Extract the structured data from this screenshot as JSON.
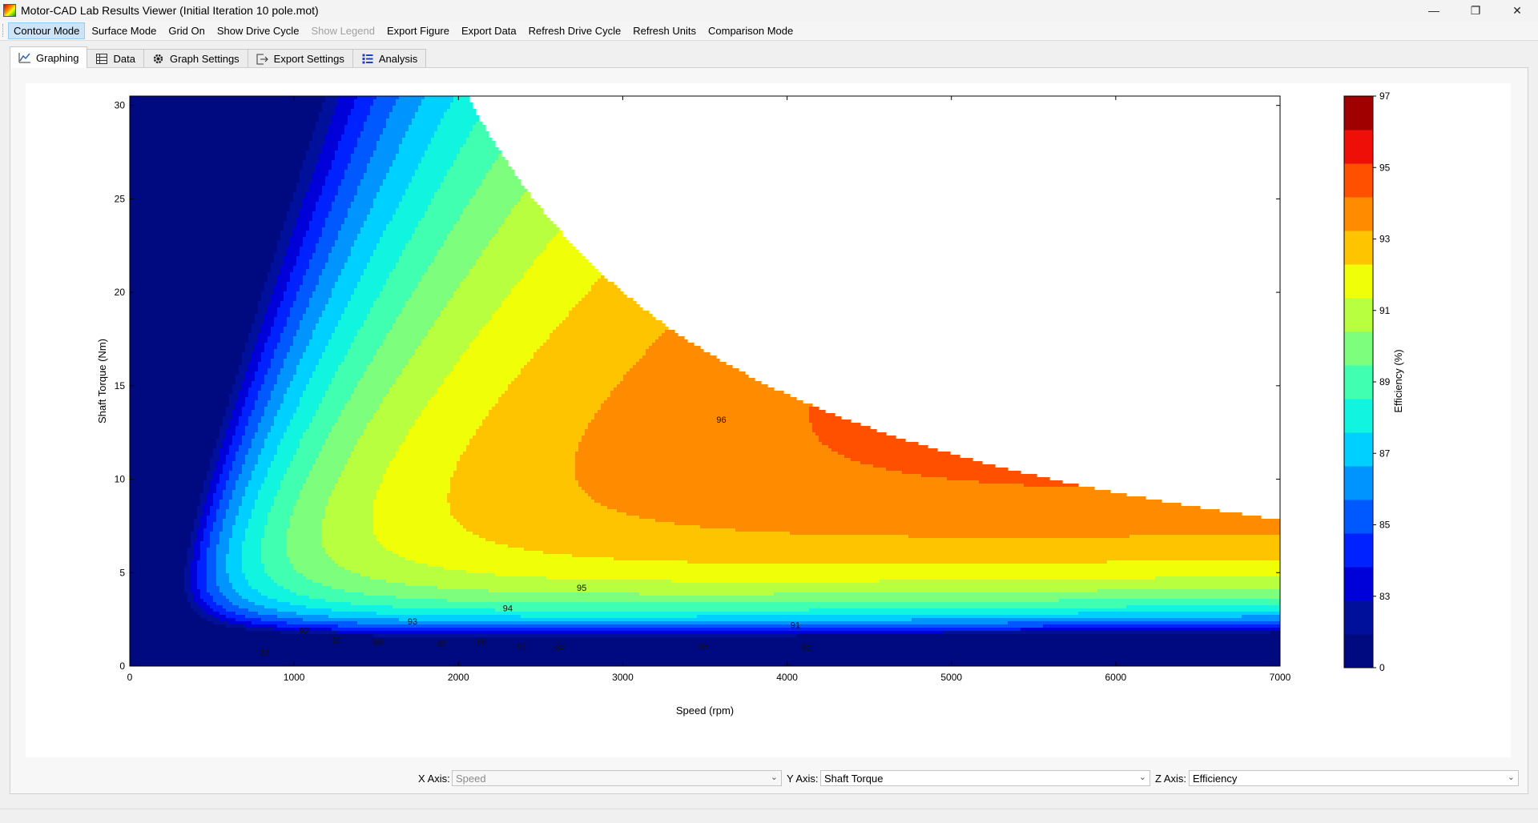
{
  "window": {
    "title": "Motor-CAD Lab Results Viewer (Initial Iteration 10 pole.mot)",
    "minimize": "—",
    "maximize": "❐",
    "close": "✕"
  },
  "menu": [
    {
      "label": "Contour Mode",
      "name": "menu-contour-mode",
      "state": "active"
    },
    {
      "label": "Surface Mode",
      "name": "menu-surface-mode",
      "state": ""
    },
    {
      "label": "Grid On",
      "name": "menu-grid-on",
      "state": ""
    },
    {
      "label": "Show Drive Cycle",
      "name": "menu-show-drive-cycle",
      "state": ""
    },
    {
      "label": "Show Legend",
      "name": "menu-show-legend",
      "state": "disabled"
    },
    {
      "label": "Export Figure",
      "name": "menu-export-figure",
      "state": ""
    },
    {
      "label": "Export Data",
      "name": "menu-export-data",
      "state": ""
    },
    {
      "label": "Refresh Drive Cycle",
      "name": "menu-refresh-drive-cycle",
      "state": ""
    },
    {
      "label": "Refresh Units",
      "name": "menu-refresh-units",
      "state": ""
    },
    {
      "label": "Comparison Mode",
      "name": "menu-comparison-mode",
      "state": ""
    }
  ],
  "tabs": [
    {
      "label": "Graphing",
      "icon": "chart-line-icon",
      "glyph": "📈",
      "active": true
    },
    {
      "label": "Data",
      "icon": "grid-table-icon",
      "glyph": "▦",
      "active": false
    },
    {
      "label": "Graph Settings",
      "icon": "gear-icon",
      "glyph": "✿",
      "active": false
    },
    {
      "label": "Export Settings",
      "icon": "export-icon",
      "glyph": "⇥",
      "active": false
    },
    {
      "label": "Analysis",
      "icon": "list-icon",
      "glyph": "☷",
      "active": false
    }
  ],
  "axes_selector": {
    "x_label": "X Axis:",
    "x_value": "Speed",
    "y_label": "Y Axis:",
    "y_value": "Shaft Torque",
    "z_label": "Z Axis:",
    "z_value": "Efficiency"
  },
  "chart_data": {
    "type": "contour",
    "xlabel": "Speed  (rpm)",
    "ylabel": "Shaft Torque  (Nm)",
    "colorbar_label": "Efficiency (%)",
    "xlim": [
      0,
      7000
    ],
    "ylim": [
      0,
      30.5
    ],
    "xticks": [
      0,
      1000,
      2000,
      3000,
      4000,
      5000,
      6000,
      7000
    ],
    "yticks": [
      0,
      5,
      10,
      15,
      20,
      25,
      30
    ],
    "colorbar_ticks": [
      "0",
      "83",
      "85",
      "87",
      "89",
      "91",
      "93",
      "95",
      "97"
    ],
    "levels": [
      0,
      82,
      83,
      84,
      85,
      86,
      87,
      88,
      89,
      90,
      91,
      92,
      93,
      94,
      95,
      96,
      97
    ],
    "level_colors": [
      "#000a80",
      "#00109a",
      "#0000d8",
      "#0022ff",
      "#0058ff",
      "#0094ff",
      "#00d0ff",
      "#10f4e0",
      "#40ffb0",
      "#7dff7d",
      "#b8ff40",
      "#f0ff08",
      "#ffc400",
      "#ff8c00",
      "#ff5000",
      "#ee1008",
      "#a00000"
    ],
    "contour_labels": [
      {
        "text": "96",
        "x": 3600,
        "y": 13.2
      },
      {
        "text": "95",
        "x": 2750,
        "y": 4.2
      },
      {
        "text": "94",
        "x": 2300,
        "y": 3.1
      },
      {
        "text": "93",
        "x": 1720,
        "y": 2.4
      },
      {
        "text": "92",
        "x": 1060,
        "y": 1.9
      },
      {
        "text": "91",
        "x": 4050,
        "y": 2.2
      },
      {
        "text": "90",
        "x": 1260,
        "y": 1.4
      },
      {
        "text": "89",
        "x": 1510,
        "y": 1.3
      },
      {
        "text": "87",
        "x": 1900,
        "y": 1.2
      },
      {
        "text": "88",
        "x": 2140,
        "y": 1.3
      },
      {
        "text": "86",
        "x": 2380,
        "y": 1.1
      },
      {
        "text": "84",
        "x": 2620,
        "y": 1.0
      },
      {
        "text": "85",
        "x": 3490,
        "y": 1.1
      },
      {
        "text": "83",
        "x": 820,
        "y": 0.7
      },
      {
        "text": "82",
        "x": 4120,
        "y": 1.0
      }
    ]
  }
}
